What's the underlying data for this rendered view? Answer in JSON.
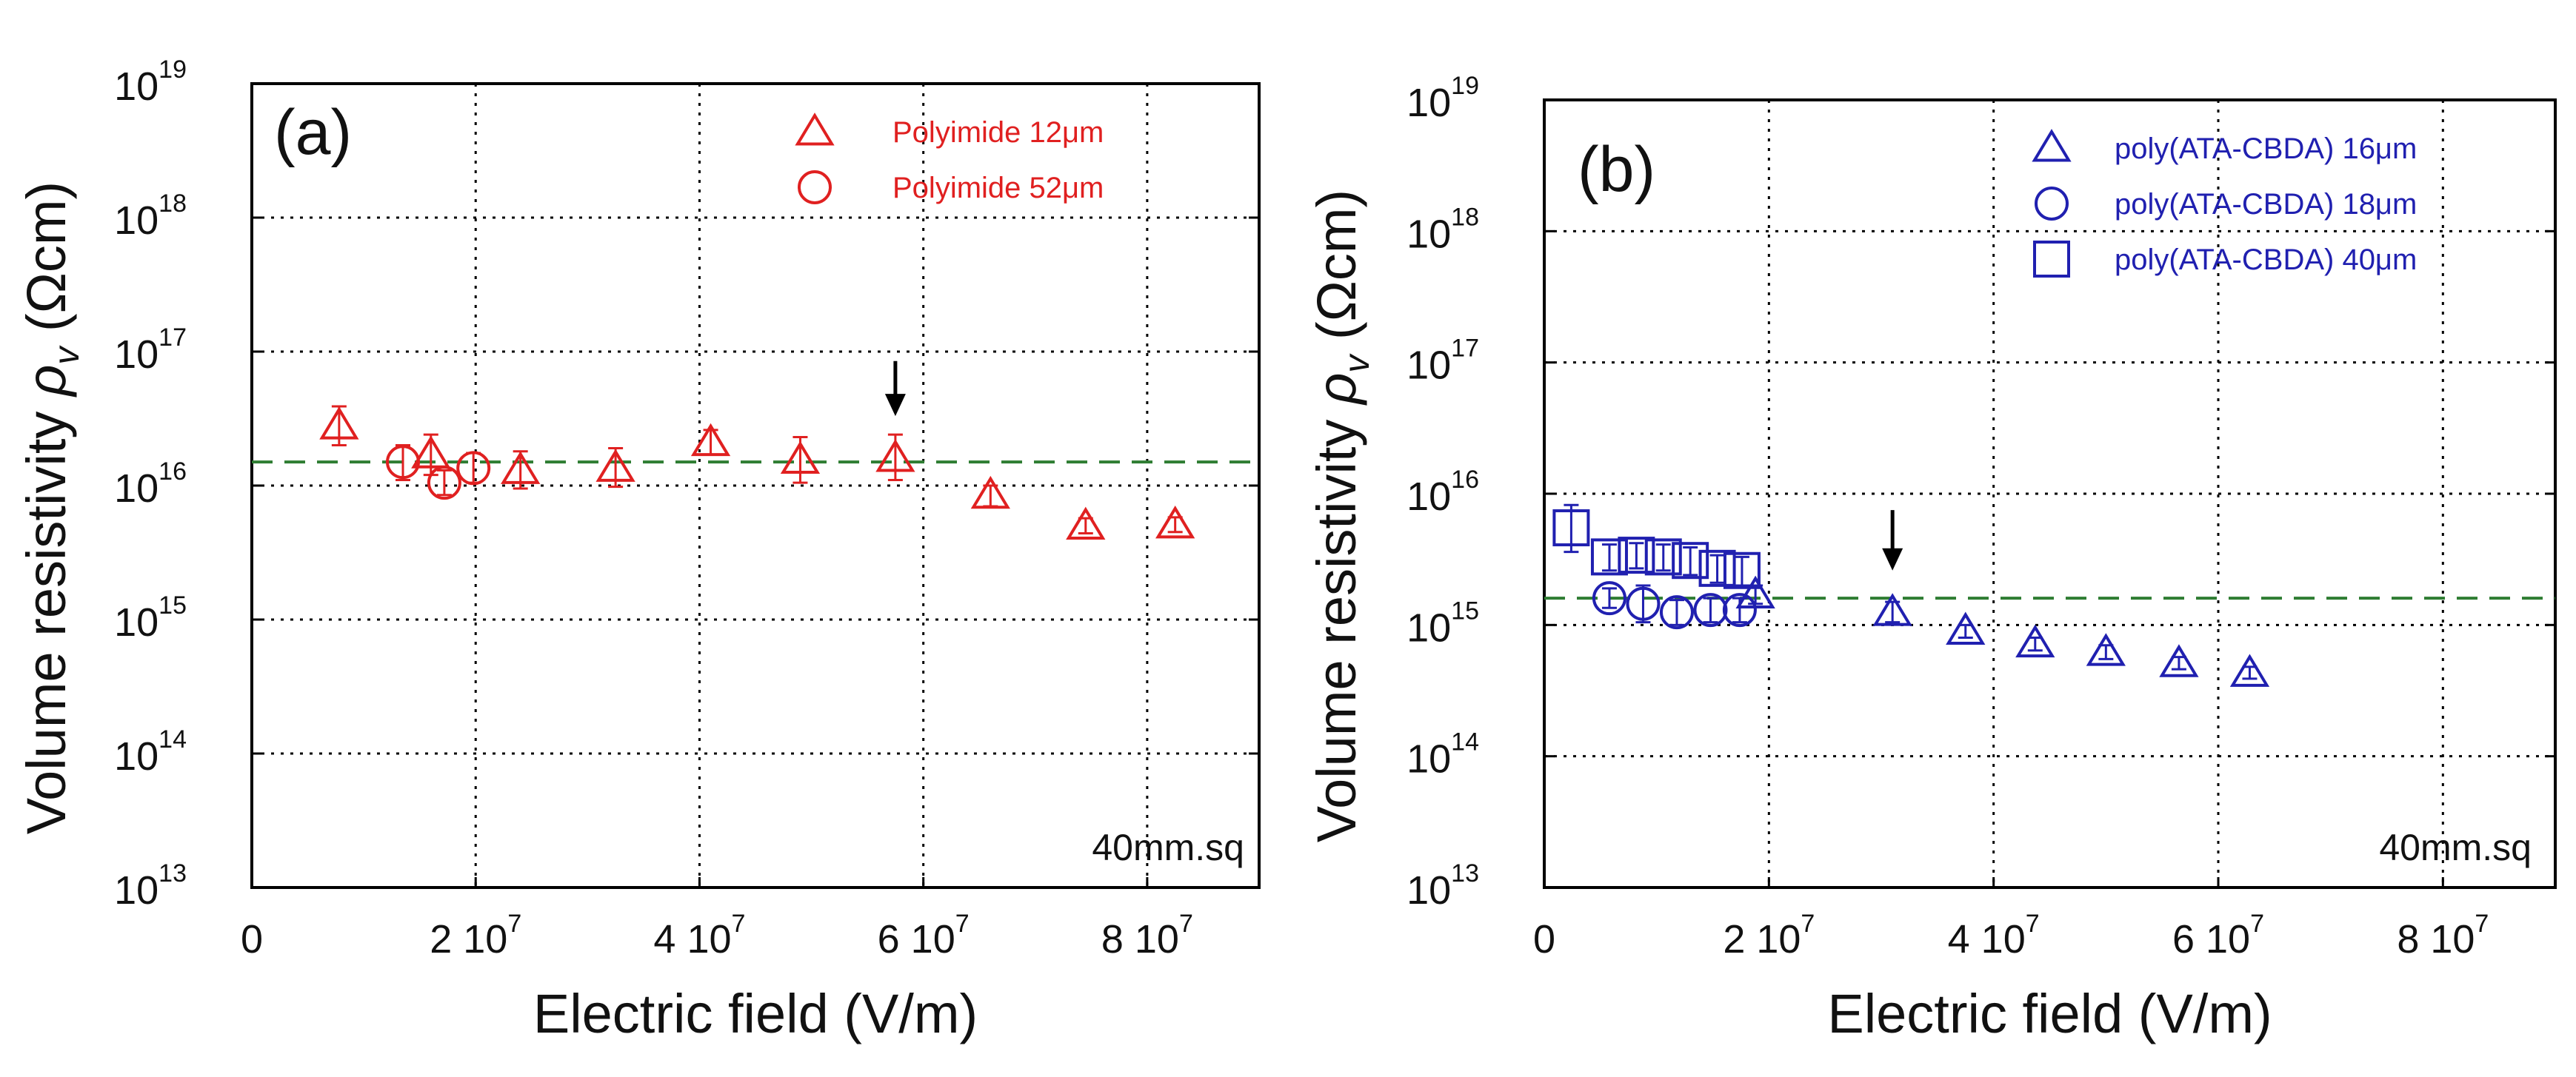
{
  "chart_data": [
    {
      "type": "scatter",
      "panel_label": "(a)",
      "xlabel": "Electric field (V/m)",
      "ylabel_main": "Volume resistivity ",
      "ylabel_symbol": "ρ",
      "ylabel_subscript": "v",
      "ylabel_unit": " (Ωcm)",
      "xlim": [
        0,
        90000000
      ],
      "ylim_log10": [
        13,
        19
      ],
      "x_ticks": [
        {
          "value": 0,
          "base": "0",
          "exp": ""
        },
        {
          "value": 20000000,
          "base": "2 10",
          "exp": "7"
        },
        {
          "value": 40000000,
          "base": "4 10",
          "exp": "7"
        },
        {
          "value": 60000000,
          "base": "6 10",
          "exp": "7"
        },
        {
          "value": 80000000,
          "base": "8 10",
          "exp": "7"
        }
      ],
      "y_ticks": [
        {
          "value": 13,
          "base": "10",
          "exp": "13"
        },
        {
          "value": 14,
          "base": "10",
          "exp": "14"
        },
        {
          "value": 15,
          "base": "10",
          "exp": "15"
        },
        {
          "value": 16,
          "base": "10",
          "exp": "16"
        },
        {
          "value": 17,
          "base": "10",
          "exp": "17"
        },
        {
          "value": 18,
          "base": "10",
          "exp": "18"
        },
        {
          "value": 19,
          "base": "10",
          "exp": "19"
        }
      ],
      "grid": true,
      "legend_position": "top-right",
      "annotation": "40mm.sq",
      "reference_line": {
        "y": 1.5e+16,
        "color": "#2e7d32",
        "style": "dashed"
      },
      "arrow_at": {
        "x": 57500000,
        "y_from": 8.5e+16,
        "y_to": 3.3e+16
      },
      "series": [
        {
          "name": "Polyimide 12μm",
          "marker": "triangle",
          "color": "#e02020",
          "points": [
            {
              "x": 7800000,
              "y": 2.8e+16,
              "err_low": 2e+16,
              "err_high": 3.9e+16
            },
            {
              "x": 16000000,
              "y": 1.7e+16,
              "err_low": 1.2e+16,
              "err_high": 2.4e+16
            },
            {
              "x": 24000000,
              "y": 1.3e+16,
              "err_low": 9500000000000000.0,
              "err_high": 1.8e+16
            },
            {
              "x": 32500000,
              "y": 1.35e+16,
              "err_low": 9800000000000000.0,
              "err_high": 1.9e+16
            },
            {
              "x": 41000000,
              "y": 2.1e+16,
              "err_low": 1.7e+16,
              "err_high": 2.6e+16
            },
            {
              "x": 49000000,
              "y": 1.55e+16,
              "err_low": 1.05e+16,
              "err_high": 2.3e+16
            },
            {
              "x": 57500000,
              "y": 1.6e+16,
              "err_low": 1.1e+16,
              "err_high": 2.4e+16
            },
            {
              "x": 66000000,
              "y": 8500000000000000.0,
              "err_low": 7000000000000000.0,
              "err_high": 1e+16
            },
            {
              "x": 74500000,
              "y": 5000000000000000.0,
              "err_low": 4400000000000000.0,
              "err_high": 5700000000000000.0
            },
            {
              "x": 82500000,
              "y": 5100000000000000.0,
              "err_low": 4500000000000000.0,
              "err_high": 5800000000000000.0
            }
          ]
        },
        {
          "name": "Polyimide 52μm",
          "marker": "circle",
          "color": "#e02020",
          "points": [
            {
              "x": 13500000,
              "y": 1.5e+16,
              "err_low": 1.1e+16,
              "err_high": 2e+16
            },
            {
              "x": 17200000,
              "y": 1.05e+16,
              "err_low": 8500000000000000.0,
              "err_high": 1.3e+16
            },
            {
              "x": 19800000,
              "y": 1.35e+16,
              "err_low": 1.05e+16,
              "err_high": 1.75e+16
            }
          ]
        }
      ]
    },
    {
      "type": "scatter",
      "panel_label": "(b)",
      "xlabel": "Electric field (V/m)",
      "ylabel_main": "Volume resistivity ",
      "ylabel_symbol": "ρ",
      "ylabel_subscript": "v",
      "ylabel_unit": " (Ωcm)",
      "xlim": [
        0,
        90000000
      ],
      "ylim_log10": [
        13,
        19
      ],
      "x_ticks": [
        {
          "value": 0,
          "base": "0",
          "exp": ""
        },
        {
          "value": 20000000,
          "base": "2 10",
          "exp": "7"
        },
        {
          "value": 40000000,
          "base": "4 10",
          "exp": "7"
        },
        {
          "value": 60000000,
          "base": "6 10",
          "exp": "7"
        },
        {
          "value": 80000000,
          "base": "8 10",
          "exp": "7"
        }
      ],
      "y_ticks": [
        {
          "value": 13,
          "base": "10",
          "exp": "13"
        },
        {
          "value": 14,
          "base": "10",
          "exp": "14"
        },
        {
          "value": 15,
          "base": "10",
          "exp": "15"
        },
        {
          "value": 16,
          "base": "10",
          "exp": "16"
        },
        {
          "value": 17,
          "base": "10",
          "exp": "17"
        },
        {
          "value": 18,
          "base": "10",
          "exp": "18"
        },
        {
          "value": 19,
          "base": "10",
          "exp": "19"
        }
      ],
      "grid": true,
      "legend_position": "top-right",
      "annotation": "40mm.sq",
      "reference_line": {
        "y": 1600000000000000.0,
        "color": "#2e7d32",
        "style": "dashed"
      },
      "arrow_at": {
        "x": 31000000,
        "y_from": 7500000000000000.0,
        "y_to": 2600000000000000.0
      },
      "series": [
        {
          "name": "poly(ATA-CBDA) 16μm",
          "marker": "triangle",
          "color": "#2020b0",
          "points": [
            {
              "x": 18800000,
              "y": 1700000000000000.0,
              "err_low": 1450000000000000.0,
              "err_high": 2000000000000000.0
            },
            {
              "x": 31000000,
              "y": 1250000000000000.0,
              "err_low": 1050000000000000.0,
              "err_high": 1500000000000000.0
            },
            {
              "x": 37500000,
              "y": 900000000000000.0,
              "err_low": 800000000000000.0,
              "err_high": 1000000000000000.0
            },
            {
              "x": 43700000,
              "y": 720000000000000.0,
              "err_low": 640000000000000.0,
              "err_high": 800000000000000.0
            },
            {
              "x": 50000000,
              "y": 620000000000000.0,
              "err_low": 550000000000000.0,
              "err_high": 700000000000000.0
            },
            {
              "x": 56500000,
              "y": 510000000000000.0,
              "err_low": 460000000000000.0,
              "err_high": 570000000000000.0
            },
            {
              "x": 62800000,
              "y": 430000000000000.0,
              "err_low": 390000000000000.0,
              "err_high": 480000000000000.0
            }
          ]
        },
        {
          "name": "poly(ATA-CBDA) 18μm",
          "marker": "circle",
          "color": "#2020b0",
          "points": [
            {
              "x": 5800000,
              "y": 1600000000000000.0,
              "err_low": 1350000000000000.0,
              "err_high": 1900000000000000.0
            },
            {
              "x": 8800000,
              "y": 1450000000000000.0,
              "err_low": 1050000000000000.0,
              "err_high": 2000000000000000.0
            },
            {
              "x": 11800000,
              "y": 1250000000000000.0,
              "err_low": 1000000000000000.0,
              "err_high": 1550000000000000.0
            },
            {
              "x": 14800000,
              "y": 1300000000000000.0,
              "err_low": 1050000000000000.0,
              "err_high": 1600000000000000.0
            },
            {
              "x": 17400000,
              "y": 1300000000000000.0,
              "err_low": 1050000000000000.0,
              "err_high": 1600000000000000.0
            }
          ]
        },
        {
          "name": "poly(ATA-CBDA) 40μm",
          "marker": "square",
          "color": "#2020b0",
          "points": [
            {
              "x": 2400000,
              "y": 5500000000000000.0,
              "err_low": 3600000000000000.0,
              "err_high": 8200000000000000.0
            },
            {
              "x": 5800000,
              "y": 3300000000000000.0,
              "err_low": 2600000000000000.0,
              "err_high": 4100000000000000.0
            },
            {
              "x": 8200000,
              "y": 3400000000000000.0,
              "err_low": 2700000000000000.0,
              "err_high": 4200000000000000.0
            },
            {
              "x": 10600000,
              "y": 3300000000000000.0,
              "err_low": 2600000000000000.0,
              "err_high": 4100000000000000.0
            },
            {
              "x": 13000000,
              "y": 3100000000000000.0,
              "err_low": 2400000000000000.0,
              "err_high": 3900000000000000.0
            },
            {
              "x": 15400000,
              "y": 2700000000000000.0,
              "err_low": 2100000000000000.0,
              "err_high": 3400000000000000.0
            },
            {
              "x": 17600000,
              "y": 2600000000000000.0,
              "err_low": 2000000000000000.0,
              "err_high": 3300000000000000.0
            }
          ]
        }
      ]
    }
  ]
}
